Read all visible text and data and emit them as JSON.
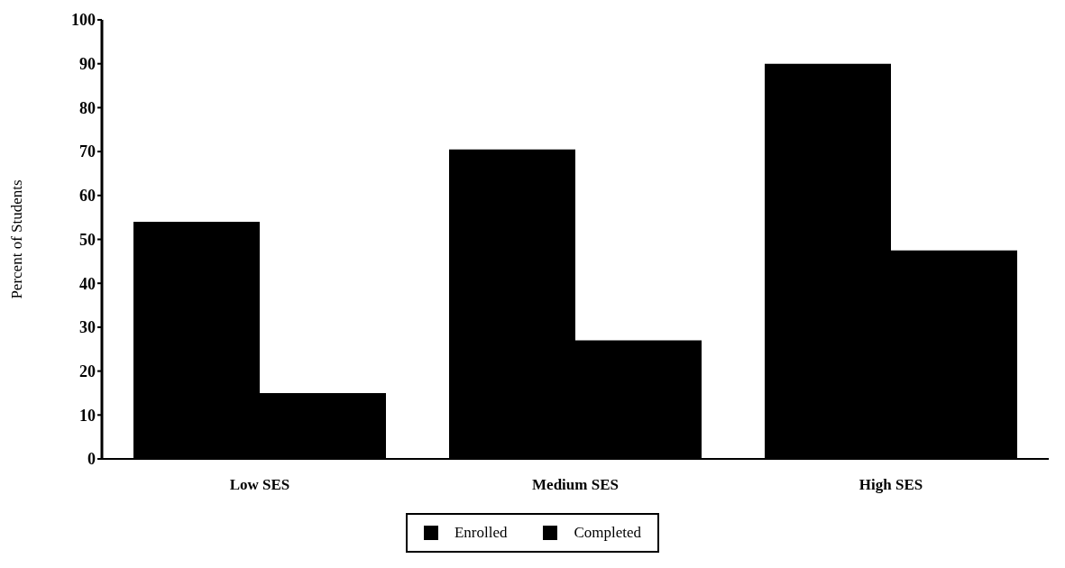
{
  "chart_data": {
    "type": "bar",
    "ylabel": "Percent of Students",
    "categories": [
      "Low SES",
      "Medium SES",
      "High SES"
    ],
    "series": [
      {
        "name": "Enrolled",
        "color": "#000000",
        "values": [
          54,
          70.5,
          90
        ]
      },
      {
        "name": "Completed",
        "color": "#000000",
        "values": [
          15,
          27,
          47.5
        ]
      }
    ],
    "ylim": [
      0,
      100
    ],
    "yticks": [
      0,
      10,
      20,
      30,
      40,
      50,
      60,
      70,
      80,
      90,
      100
    ],
    "grid": false,
    "legend": "bottom"
  }
}
